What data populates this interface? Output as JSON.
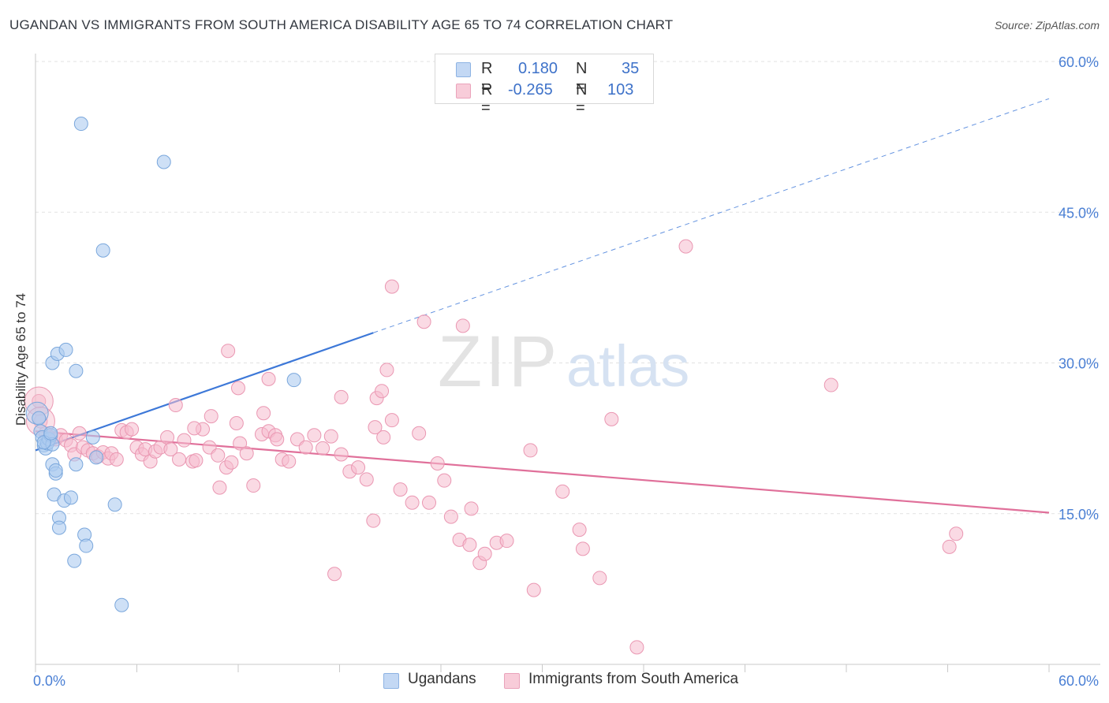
{
  "title": "UGANDAN VS IMMIGRANTS FROM SOUTH AMERICA DISABILITY AGE 65 TO 74 CORRELATION CHART",
  "source": "Source: ZipAtlas.com",
  "watermark": {
    "zip": "ZIP",
    "atlas": "atlas"
  },
  "legend": {
    "rows": [
      {
        "r_label": "R =",
        "r_value": "0.180",
        "n_label": "N =",
        "n_value": "35",
        "color": "#aecbf0"
      },
      {
        "r_label": "R =",
        "r_value": "-0.265",
        "n_label": "N =",
        "n_value": "103",
        "color": "#f6bccd"
      }
    ]
  },
  "bottom_legend": [
    {
      "label": "Ugandans",
      "color": "#aecbf0"
    },
    {
      "label": "Immigrants from South America",
      "color": "#f6bccd"
    }
  ],
  "colors": {
    "blue_fill": "#aecbf0",
    "blue_stroke": "#7aa7dc",
    "blue_line": "#3d78d8",
    "pink_fill": "#f6bccd",
    "pink_stroke": "#ea97b2",
    "pink_line": "#e0709a",
    "axis_text": "#4a7fd4",
    "grid": "#e2e2e2"
  },
  "chart_data": {
    "type": "scatter",
    "title": "UGANDAN VS IMMIGRANTS FROM SOUTH AMERICA DISABILITY AGE 65 TO 74 CORRELATION CHART",
    "xlabel": "",
    "ylabel": "Disability Age 65 to 74",
    "xlim": [
      0,
      60
    ],
    "ylim": [
      0,
      60
    ],
    "x_tick_labels": [
      "0.0%",
      "60.0%"
    ],
    "y_tick_labels": [
      "15.0%",
      "30.0%",
      "45.0%",
      "60.0%"
    ],
    "y_ticks": [
      15,
      30,
      45,
      60
    ],
    "grid": true,
    "legend_position": "top-center",
    "series": [
      {
        "name": "Ugandans",
        "R": 0.18,
        "N": 35,
        "trend": {
          "x": [
            0,
            20
          ],
          "y": [
            21.3,
            33.0
          ],
          "dashed_to": [
            60,
            56.3
          ]
        },
        "points": [
          [
            0.2,
            24.5
          ],
          [
            0.3,
            23.2
          ],
          [
            0.4,
            22.6
          ],
          [
            0.5,
            21.8
          ],
          [
            0.6,
            21.5
          ],
          [
            0.7,
            22.0
          ],
          [
            0.8,
            22.4
          ],
          [
            0.9,
            22.8
          ],
          [
            1.0,
            21.9
          ],
          [
            0.5,
            22.1
          ],
          [
            0.9,
            23.0
          ],
          [
            1.0,
            19.9
          ],
          [
            1.1,
            16.9
          ],
          [
            1.2,
            19.0
          ],
          [
            1.2,
            19.3
          ],
          [
            1.0,
            30.0
          ],
          [
            1.3,
            30.9
          ],
          [
            1.8,
            31.3
          ],
          [
            2.4,
            29.2
          ],
          [
            1.4,
            14.6
          ],
          [
            1.4,
            13.6
          ],
          [
            1.7,
            16.3
          ],
          [
            2.1,
            16.6
          ],
          [
            2.4,
            19.9
          ],
          [
            2.3,
            10.3
          ],
          [
            2.9,
            12.9
          ],
          [
            3.0,
            11.8
          ],
          [
            3.4,
            22.6
          ],
          [
            3.6,
            20.6
          ],
          [
            2.7,
            53.8
          ],
          [
            4.0,
            41.2
          ],
          [
            4.7,
            15.9
          ],
          [
            5.1,
            5.9
          ],
          [
            7.6,
            50.0
          ],
          [
            15.3,
            28.3
          ]
        ],
        "large_points": [
          [
            0.1,
            25.0
          ]
        ]
      },
      {
        "name": "Immigrants from South America",
        "R": -0.265,
        "N": 103,
        "trend": {
          "x": [
            0,
            60
          ],
          "y": [
            23.2,
            15.1
          ]
        },
        "points": [
          [
            0.2,
            26.2
          ],
          [
            0.3,
            24.2
          ],
          [
            0.6,
            23.0
          ],
          [
            0.9,
            22.6
          ],
          [
            1.2,
            22.4
          ],
          [
            1.5,
            22.8
          ],
          [
            1.8,
            22.3
          ],
          [
            2.1,
            21.8
          ],
          [
            2.3,
            20.9
          ],
          [
            2.6,
            23.0
          ],
          [
            2.8,
            21.6
          ],
          [
            3.1,
            21.3
          ],
          [
            3.4,
            21.0
          ],
          [
            3.7,
            20.7
          ],
          [
            4.0,
            21.1
          ],
          [
            4.3,
            20.5
          ],
          [
            4.5,
            21.0
          ],
          [
            4.8,
            20.4
          ],
          [
            5.1,
            23.3
          ],
          [
            5.4,
            23.1
          ],
          [
            5.7,
            23.4
          ],
          [
            6.0,
            21.6
          ],
          [
            6.3,
            20.9
          ],
          [
            6.5,
            21.4
          ],
          [
            6.8,
            20.2
          ],
          [
            7.1,
            21.2
          ],
          [
            7.4,
            21.6
          ],
          [
            7.8,
            22.6
          ],
          [
            8.0,
            21.4
          ],
          [
            8.5,
            20.4
          ],
          [
            8.8,
            22.3
          ],
          [
            9.3,
            20.2
          ],
          [
            9.5,
            20.3
          ],
          [
            9.9,
            23.4
          ],
          [
            10.3,
            21.6
          ],
          [
            10.8,
            20.8
          ],
          [
            11.3,
            19.6
          ],
          [
            11.6,
            20.1
          ],
          [
            12.1,
            22.0
          ],
          [
            12.5,
            21.0
          ],
          [
            12.9,
            17.8
          ],
          [
            13.4,
            22.9
          ],
          [
            13.8,
            23.2
          ],
          [
            14.2,
            22.8
          ],
          [
            14.6,
            20.4
          ],
          [
            15.0,
            20.2
          ],
          [
            15.5,
            22.4
          ],
          [
            16.0,
            21.6
          ],
          [
            16.5,
            22.8
          ],
          [
            17.0,
            21.5
          ],
          [
            17.5,
            22.7
          ],
          [
            18.1,
            20.9
          ],
          [
            18.6,
            19.2
          ],
          [
            19.1,
            19.6
          ],
          [
            19.6,
            18.4
          ],
          [
            20.1,
            23.6
          ],
          [
            20.6,
            22.6
          ],
          [
            21.1,
            24.3
          ],
          [
            21.6,
            17.4
          ],
          [
            22.3,
            16.1
          ],
          [
            22.7,
            23.0
          ],
          [
            23.3,
            16.1
          ],
          [
            23.8,
            20.0
          ],
          [
            24.2,
            18.3
          ],
          [
            24.6,
            14.7
          ],
          [
            25.1,
            12.4
          ],
          [
            25.7,
            11.9
          ],
          [
            26.3,
            10.1
          ],
          [
            26.6,
            11.0
          ],
          [
            27.3,
            12.1
          ],
          [
            27.9,
            12.3
          ],
          [
            29.5,
            7.4
          ],
          [
            29.3,
            21.3
          ],
          [
            31.2,
            17.2
          ],
          [
            32.2,
            13.4
          ],
          [
            32.4,
            11.5
          ],
          [
            33.4,
            8.6
          ],
          [
            34.1,
            24.4
          ],
          [
            35.6,
            1.7
          ],
          [
            38.5,
            41.6
          ],
          [
            47.1,
            27.8
          ],
          [
            54.5,
            13.0
          ],
          [
            54.1,
            11.7
          ],
          [
            20.0,
            14.3
          ],
          [
            10.9,
            17.6
          ],
          [
            11.4,
            31.2
          ],
          [
            12.0,
            27.5
          ],
          [
            13.8,
            28.4
          ],
          [
            14.3,
            22.4
          ],
          [
            17.7,
            9.0
          ],
          [
            21.1,
            37.6
          ],
          [
            23.0,
            34.1
          ],
          [
            25.3,
            33.7
          ],
          [
            20.2,
            26.5
          ],
          [
            20.8,
            29.3
          ],
          [
            11.9,
            24.0
          ],
          [
            13.5,
            25.0
          ],
          [
            9.4,
            23.5
          ],
          [
            10.4,
            24.7
          ],
          [
            8.3,
            25.8
          ],
          [
            18.1,
            26.6
          ],
          [
            20.5,
            27.2
          ],
          [
            25.8,
            15.5
          ]
        ],
        "large_points": [
          [
            0.2,
            26.2
          ],
          [
            0.3,
            24.2
          ]
        ]
      }
    ]
  }
}
